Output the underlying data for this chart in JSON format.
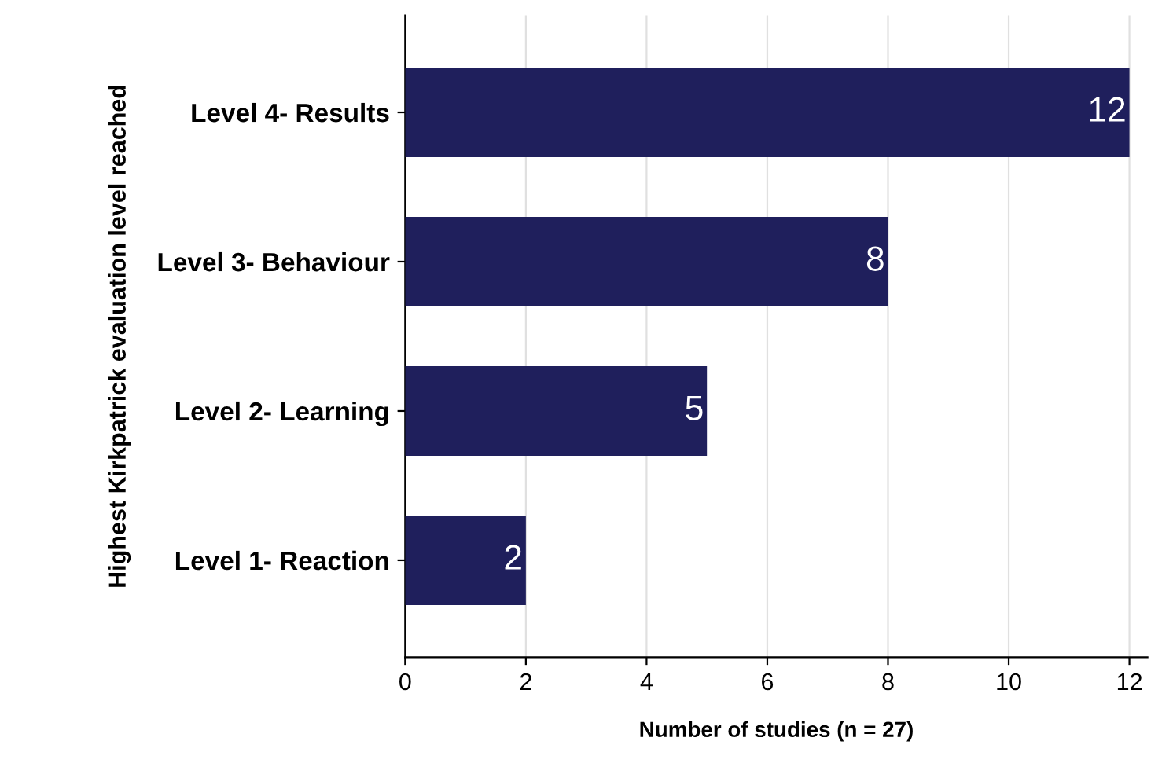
{
  "chart_data": {
    "type": "bar",
    "orientation": "horizontal",
    "categories": [
      "Level 4- Results",
      "Level 3- Behaviour",
      "Level 2- Learning",
      "Level 1- Reaction"
    ],
    "values": [
      12,
      8,
      5,
      2
    ],
    "color": "#1f1f5c",
    "xlabel": "Number of studies (n = 27)",
    "ylabel": "Highest Kirkpatrick evaluation level reached",
    "xlim": [
      0,
      12.3
    ],
    "xticks": [
      0,
      2,
      4,
      6,
      8,
      10,
      12
    ],
    "grid": "x",
    "data_labels": true
  }
}
